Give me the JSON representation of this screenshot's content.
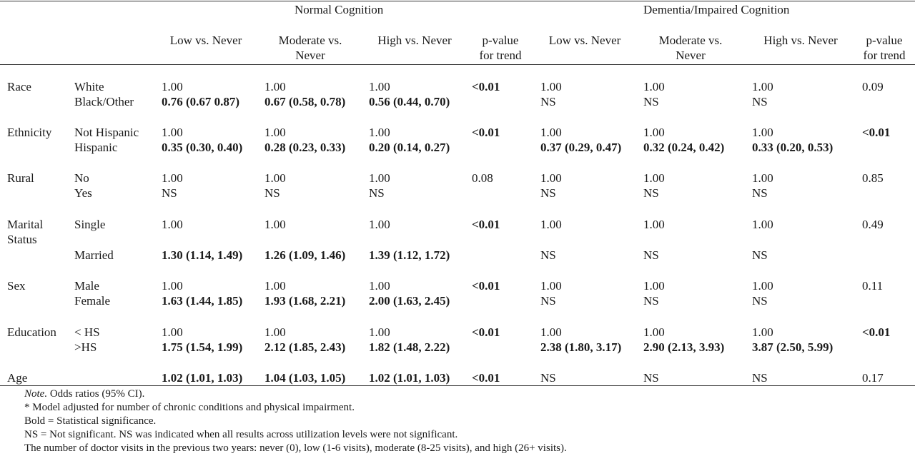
{
  "groups": {
    "normal": "Normal Cognition",
    "dementia": "Dementia/Impaired Cognition"
  },
  "columns": {
    "low": "Low vs. Never",
    "moderate_1": "Moderate vs.",
    "moderate_2": "Never",
    "high": "High vs. Never",
    "ptrend_1": "p-value",
    "ptrend_2": "for trend"
  },
  "rows": [
    {
      "var": "Race",
      "var2": "",
      "levels": [
        "White",
        "Black/Other"
      ],
      "n_low": [
        "1.00",
        "0.76 (0.67 0.87)"
      ],
      "n_mod": [
        "1.00",
        "0.67 (0.58, 0.78)"
      ],
      "n_high": [
        "1.00",
        "0.56 (0.44, 0.70)"
      ],
      "n_p": "<0.01",
      "d_low": [
        "1.00",
        "NS"
      ],
      "d_mod": [
        "1.00",
        "NS"
      ],
      "d_high": [
        "1.00",
        "NS"
      ],
      "d_p": "0.09"
    },
    {
      "var": "Ethnicity",
      "var2": "",
      "levels": [
        "Not Hispanic",
        "Hispanic"
      ],
      "n_low": [
        "1.00",
        "0.35 (0.30, 0.40)"
      ],
      "n_mod": [
        "1.00",
        "0.28 (0.23, 0.33)"
      ],
      "n_high": [
        "1.00",
        "0.20 (0.14, 0.27)"
      ],
      "n_p": "<0.01",
      "d_low": [
        "1.00",
        "0.37 (0.29, 0.47)"
      ],
      "d_mod": [
        "1.00",
        "0.32 (0.24, 0.42)"
      ],
      "d_high": [
        "1.00",
        "0.33 (0.20, 0.53)"
      ],
      "d_p": "<0.01"
    },
    {
      "var": "Rural",
      "var2": "",
      "levels": [
        "No",
        "Yes"
      ],
      "n_low": [
        "1.00",
        "NS"
      ],
      "n_mod": [
        "1.00",
        "NS"
      ],
      "n_high": [
        "1.00",
        "NS"
      ],
      "n_p": "0.08",
      "d_low": [
        "1.00",
        "NS"
      ],
      "d_mod": [
        "1.00",
        "NS"
      ],
      "d_high": [
        "1.00",
        "NS"
      ],
      "d_p": "0.85"
    },
    {
      "var": "Marital",
      "var2": "Status",
      "levels": [
        "Single",
        "Married"
      ],
      "n_low": [
        "1.00",
        "1.30 (1.14, 1.49)"
      ],
      "n_mod": [
        "1.00",
        "1.26 (1.09, 1.46)"
      ],
      "n_high": [
        "1.00",
        "1.39 (1.12, 1.72)"
      ],
      "n_p": "<0.01",
      "d_low": [
        "1.00",
        "NS"
      ],
      "d_mod": [
        "1.00",
        "NS"
      ],
      "d_high": [
        "1.00",
        "NS"
      ],
      "d_p": "0.49"
    },
    {
      "var": "Sex",
      "var2": "",
      "levels": [
        "Male",
        "Female"
      ],
      "n_low": [
        "1.00",
        "1.63 (1.44, 1.85)"
      ],
      "n_mod": [
        "1.00",
        "1.93 (1.68, 2.21)"
      ],
      "n_high": [
        "1.00",
        "2.00 (1.63, 2.45)"
      ],
      "n_p": "<0.01",
      "d_low": [
        "1.00",
        "NS"
      ],
      "d_mod": [
        "1.00",
        "NS"
      ],
      "d_high": [
        "1.00",
        "NS"
      ],
      "d_p": "0.11"
    },
    {
      "var": "Education",
      "var2": "",
      "levels": [
        "< HS",
        ">HS"
      ],
      "n_low": [
        "1.00",
        "1.75 (1.54, 1.99)"
      ],
      "n_mod": [
        "1.00",
        "2.12 (1.85, 2.43)"
      ],
      "n_high": [
        "1.00",
        "1.82 (1.48, 2.22)"
      ],
      "n_p": "<0.01",
      "d_low": [
        "1.00",
        "2.38 (1.80, 3.17)"
      ],
      "d_mod": [
        "1.00",
        "2.90 (2.13, 3.93)"
      ],
      "d_high": [
        "1.00",
        "3.87 (2.50, 5.99)"
      ],
      "d_p": "<0.01"
    },
    {
      "var": "Age",
      "var2": "",
      "levels": [
        ""
      ],
      "n_low": [
        "1.02 (1.01, 1.03)"
      ],
      "n_mod": [
        "1.04 (1.03, 1.05)"
      ],
      "n_high": [
        "1.02 (1.01, 1.03)"
      ],
      "n_p": "<0.01",
      "d_low": [
        "NS"
      ],
      "d_mod": [
        "NS"
      ],
      "d_high": [
        "NS"
      ],
      "d_p": "0.17"
    }
  ],
  "notes": {
    "note_label": "Note.",
    "note_rest": " Odds ratios (95% CI).",
    "line2": "* Model adjusted for number of chronic conditions and physical impairment.",
    "line3": "Bold = Statistical significance.",
    "line4": "NS = Not significant. NS was indicated when all results across utilization levels were not significant.",
    "line5": "The number of doctor visits in the previous two years: never (0), low (1-6 visits), moderate (8-25 visits), and high (26+ visits)."
  }
}
